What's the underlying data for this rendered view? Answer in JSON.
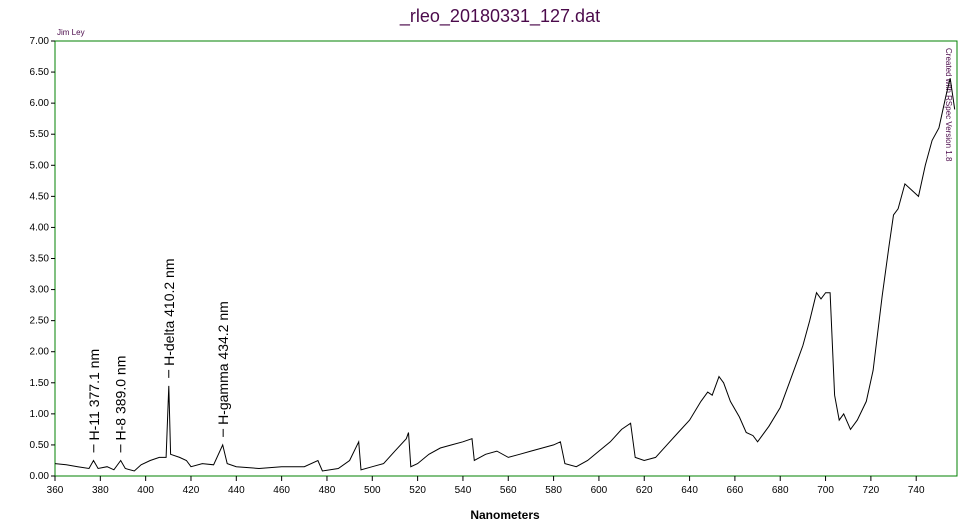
{
  "chart_data": {
    "type": "line",
    "title": "_rleo_20180331_127.dat",
    "xlabel": "Nanometers",
    "annotations_text": [
      "Jim Ley",
      "Created with RSpec Version 1.8"
    ],
    "line_labels": [
      {
        "text": "H-11 377.1 nm",
        "x": 377.1
      },
      {
        "text": "H-8 389.0 nm",
        "x": 389.0
      },
      {
        "text": "H-delta 410.2 nm",
        "x": 410.2
      },
      {
        "text": "H-gamma 434.2 nm",
        "x": 434.2
      }
    ],
    "xlim": [
      360,
      758
    ],
    "xticks": [
      360,
      380,
      400,
      420,
      440,
      460,
      480,
      500,
      520,
      540,
      560,
      580,
      600,
      620,
      640,
      660,
      680,
      700,
      720,
      740
    ],
    "ylim": [
      0,
      7
    ],
    "yticks": [
      {
        "value": 0,
        "label": "0.00"
      },
      {
        "value": 0.5,
        "label": "0.50"
      },
      {
        "value": 1,
        "label": "1.00"
      },
      {
        "value": 1.5,
        "label": "1.50"
      },
      {
        "value": 2,
        "label": "2.00"
      },
      {
        "value": 2.5,
        "label": "2.50"
      },
      {
        "value": 3,
        "label": "3.00"
      },
      {
        "value": 3.5,
        "label": "3.50"
      },
      {
        "value": 4,
        "label": "4.00"
      },
      {
        "value": 4.5,
        "label": "4.50"
      },
      {
        "value": 5,
        "label": "5.00"
      },
      {
        "value": 5.5,
        "label": "5.50"
      },
      {
        "value": 6,
        "label": "6.00"
      },
      {
        "value": 6.5,
        "label": "6.50"
      },
      {
        "value": 7,
        "label": "7.00"
      }
    ],
    "frame_color": "#008000",
    "color": "#000000",
    "x": [
      360,
      365,
      370,
      375,
      377,
      379,
      383,
      386,
      389,
      391,
      395,
      398,
      402,
      406,
      409,
      410.2,
      411,
      415,
      418,
      420,
      425,
      430,
      434,
      436,
      440,
      450,
      460,
      470,
      476,
      478,
      485,
      490,
      494,
      495,
      500,
      505,
      510,
      515,
      516,
      517,
      520,
      525,
      530,
      535,
      540,
      544,
      545,
      550,
      555,
      560,
      565,
      570,
      575,
      580,
      583,
      585,
      590,
      595,
      600,
      605,
      610,
      614,
      616,
      620,
      625,
      630,
      635,
      640,
      645,
      648,
      650,
      653,
      655,
      658,
      662,
      665,
      668,
      670,
      675,
      680,
      685,
      688,
      690,
      693,
      696,
      698,
      700,
      702,
      704,
      706,
      708,
      711,
      714,
      718,
      721,
      725,
      728,
      730,
      732,
      735,
      738,
      741,
      744,
      747,
      750,
      753,
      755,
      757
    ],
    "values": [
      0.2,
      0.18,
      0.15,
      0.12,
      0.25,
      0.12,
      0.15,
      0.1,
      0.25,
      0.12,
      0.08,
      0.18,
      0.25,
      0.3,
      0.3,
      1.45,
      0.35,
      0.3,
      0.25,
      0.15,
      0.2,
      0.18,
      0.5,
      0.2,
      0.15,
      0.12,
      0.15,
      0.15,
      0.25,
      0.08,
      0.12,
      0.25,
      0.55,
      0.1,
      0.15,
      0.2,
      0.4,
      0.6,
      0.7,
      0.15,
      0.2,
      0.35,
      0.45,
      0.5,
      0.55,
      0.6,
      0.25,
      0.35,
      0.4,
      0.3,
      0.35,
      0.4,
      0.45,
      0.5,
      0.55,
      0.2,
      0.15,
      0.25,
      0.4,
      0.55,
      0.75,
      0.85,
      0.3,
      0.25,
      0.3,
      0.5,
      0.7,
      0.9,
      1.2,
      1.35,
      1.3,
      1.6,
      1.5,
      1.2,
      0.95,
      0.7,
      0.65,
      0.55,
      0.8,
      1.1,
      1.6,
      1.9,
      2.1,
      2.5,
      2.95,
      2.85,
      2.95,
      2.95,
      1.3,
      0.9,
      1.0,
      0.75,
      0.9,
      1.2,
      1.7,
      2.9,
      3.7,
      4.2,
      4.3,
      4.7,
      4.6,
      4.5,
      5.0,
      5.4,
      5.6,
      6.1,
      6.4,
      5.9
    ]
  }
}
